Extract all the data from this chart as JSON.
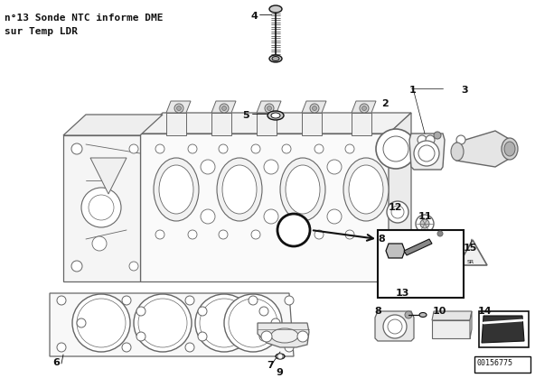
{
  "title_line1": "n°13 Sonde NTC informe DME",
  "title_line2": "sur Temp LDR",
  "part_number": "00156775",
  "bg_color": "#ffffff",
  "lc": "#666666",
  "dc": "#111111",
  "figsize": [
    5.92,
    4.19
  ],
  "dpi": 100
}
